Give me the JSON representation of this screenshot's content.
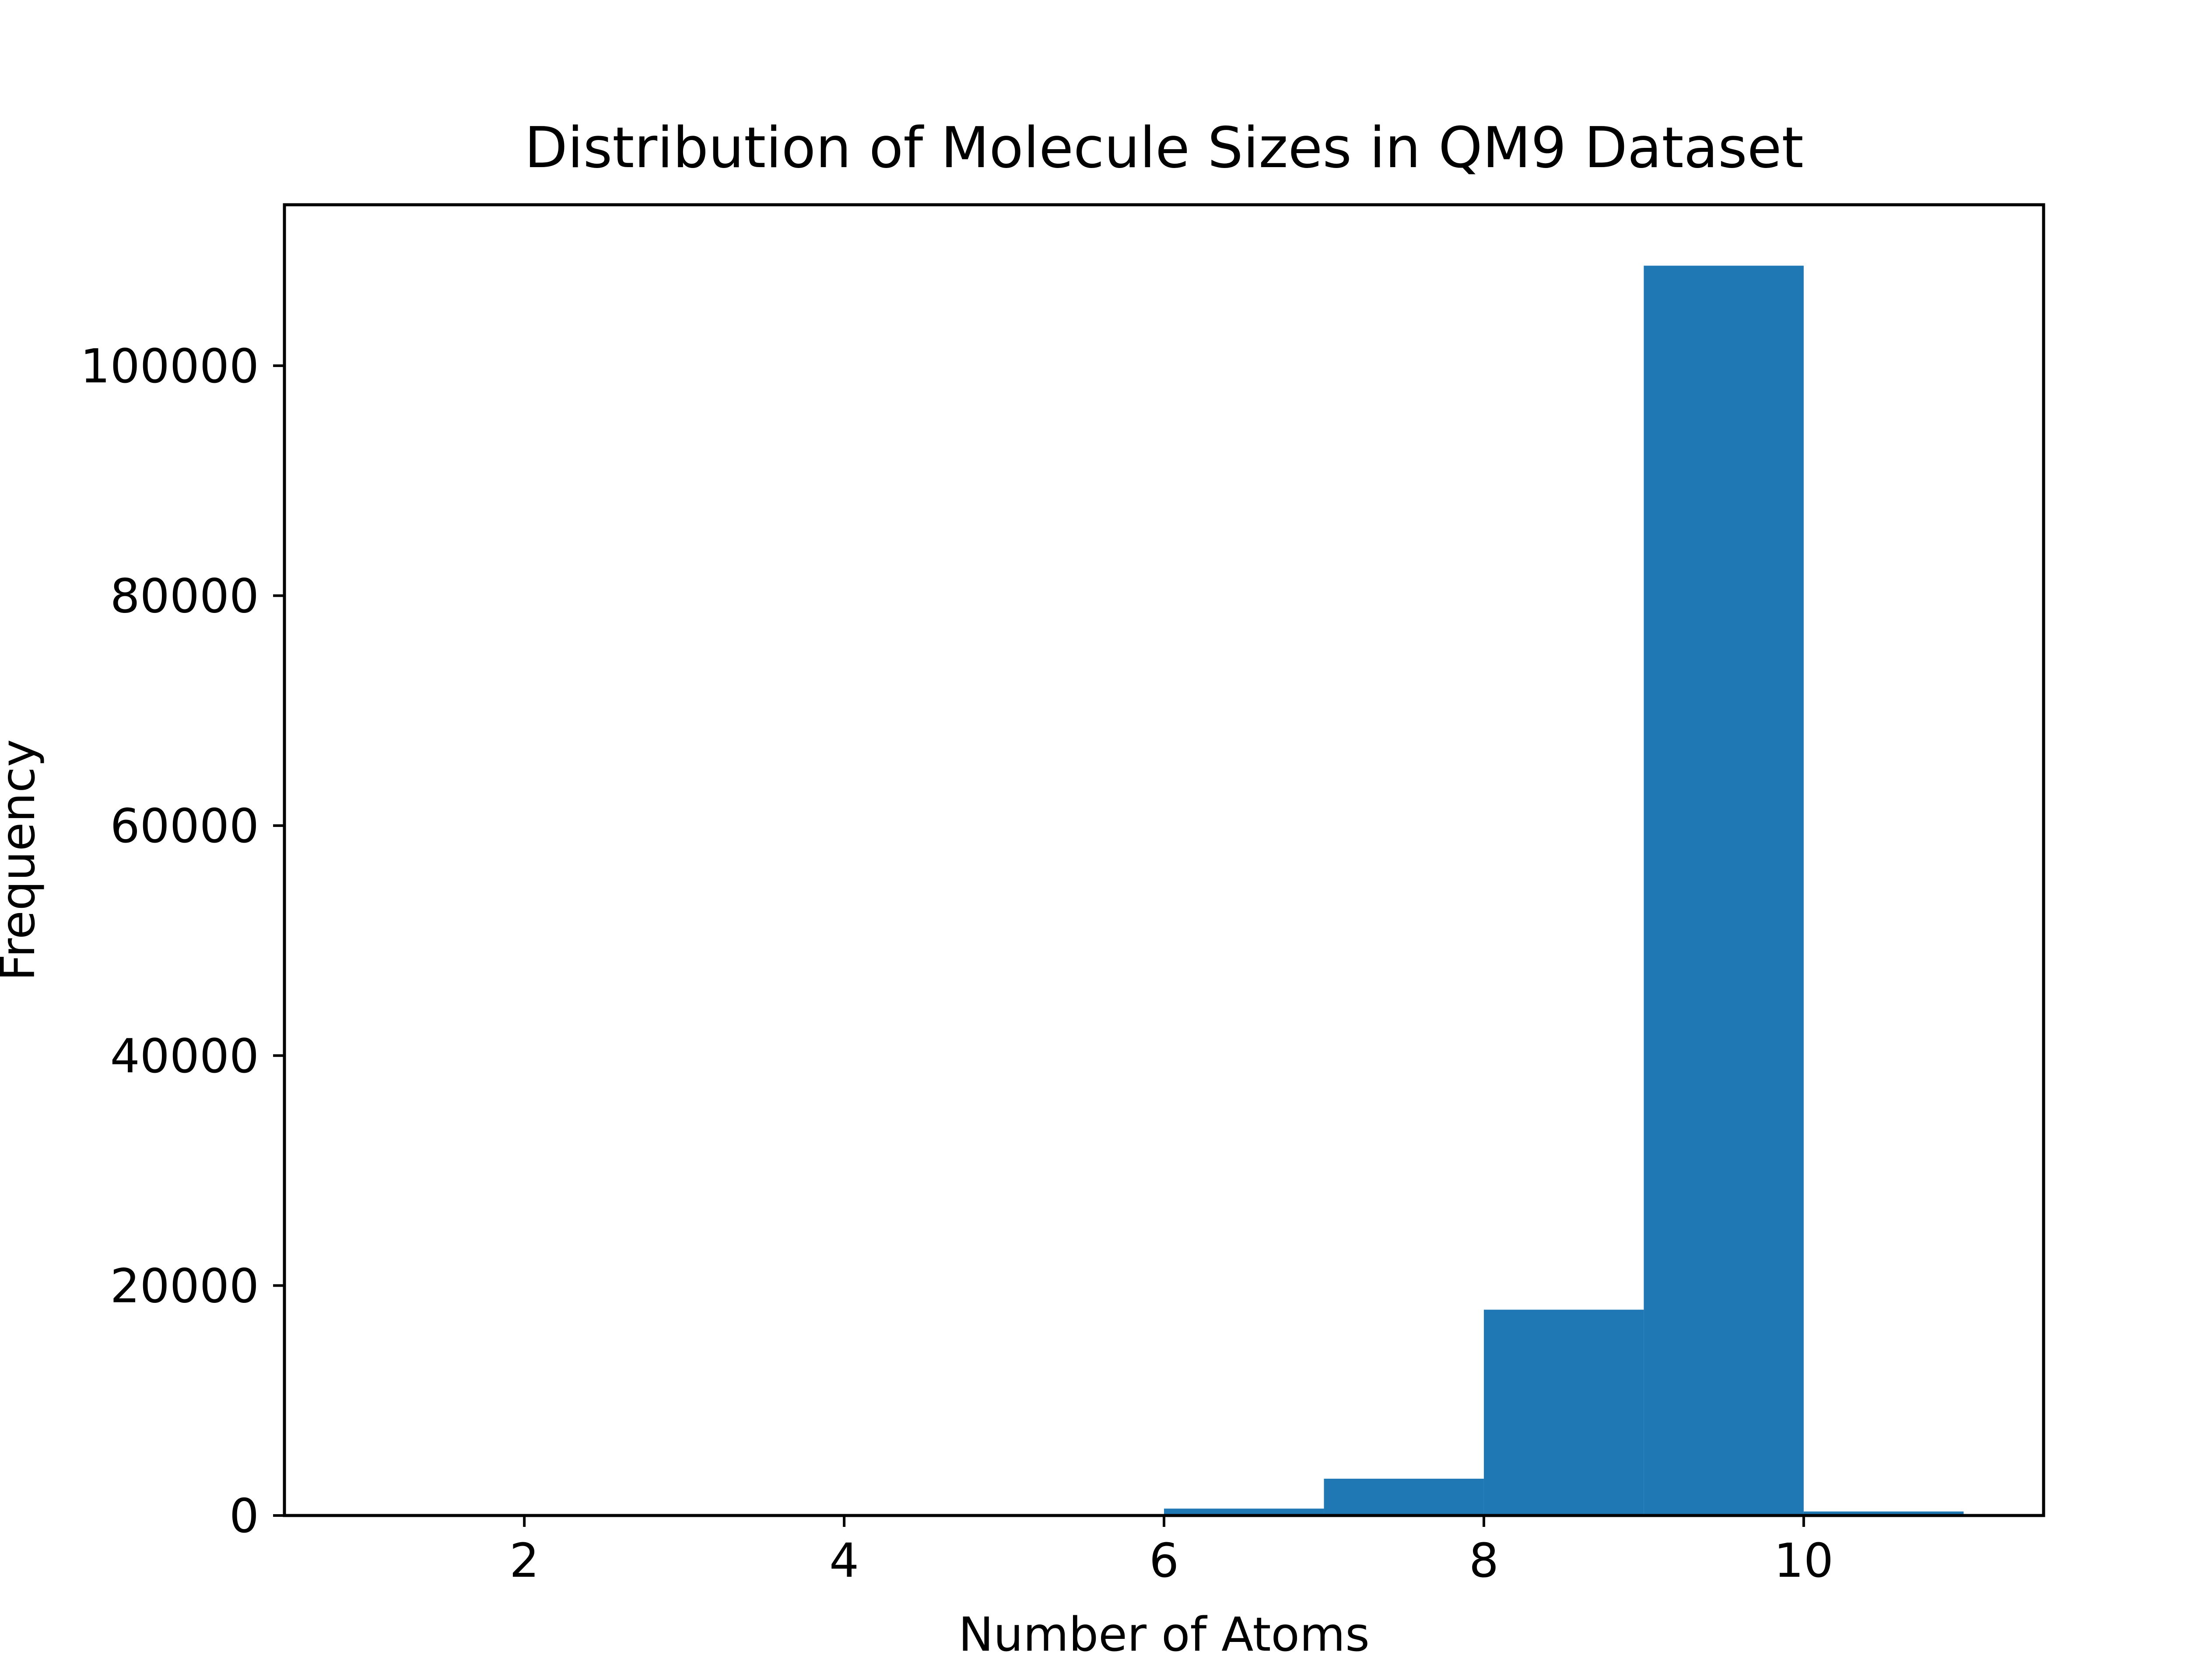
{
  "chart_data": {
    "type": "bar",
    "title": "Distribution of Molecule Sizes in QM9 Dataset",
    "xlabel": "Number of Atoms",
    "ylabel": "Frequency",
    "xlim": [
      0.5,
      11.5
    ],
    "ylim": [
      0,
      114000
    ],
    "x_ticks": [
      2,
      4,
      6,
      8,
      10
    ],
    "x_tick_labels": [
      "2",
      "4",
      "6",
      "8",
      "10"
    ],
    "y_ticks": [
      0,
      20000,
      40000,
      60000,
      80000,
      100000
    ],
    "y_tick_labels": [
      "0",
      "20000",
      "40000",
      "60000",
      "80000",
      "100000"
    ],
    "bins": [
      {
        "start": 1,
        "end": 2,
        "value": 0
      },
      {
        "start": 2,
        "end": 3,
        "value": 0
      },
      {
        "start": 3,
        "end": 4,
        "value": 0
      },
      {
        "start": 4,
        "end": 5,
        "value": 0
      },
      {
        "start": 5,
        "end": 6,
        "value": 0
      },
      {
        "start": 6,
        "end": 7,
        "value": 600
      },
      {
        "start": 7,
        "end": 8,
        "value": 3200
      },
      {
        "start": 8,
        "end": 9,
        "value": 17900
      },
      {
        "start": 9,
        "end": 10,
        "value": 108700
      },
      {
        "start": 10,
        "end": 11,
        "value": 350
      }
    ],
    "bar_color": "#1f77b4",
    "grid": false,
    "legend": "none"
  }
}
